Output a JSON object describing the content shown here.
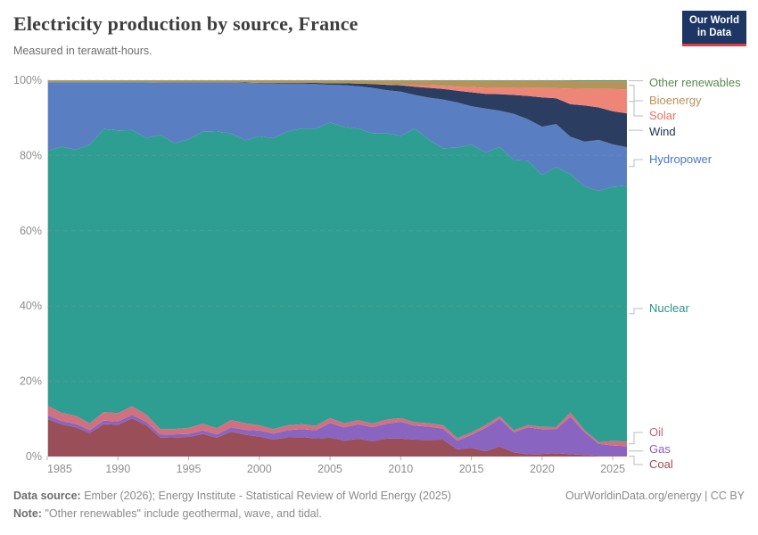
{
  "header": {
    "title": "Electricity production by source, France",
    "subtitle": "Measured in terawatt-hours.",
    "logo": {
      "line1": "Our World",
      "line2": "in Data",
      "bg_color": "#1d3663",
      "accent_color": "#dc3e42"
    }
  },
  "chart_data": {
    "type": "area",
    "stacked": true,
    "relative": true,
    "title": "Electricity production by source, France",
    "subtitle": "Measured in terawatt-hours.",
    "xlabel": "",
    "ylabel": "",
    "ylim": [
      0,
      100
    ],
    "grid": true,
    "legend_position": "right",
    "x": [
      1985,
      1986,
      1987,
      1988,
      1989,
      1990,
      1991,
      1992,
      1993,
      1994,
      1995,
      1996,
      1997,
      1998,
      1999,
      2000,
      2001,
      2002,
      2003,
      2004,
      2005,
      2006,
      2007,
      2008,
      2009,
      2010,
      2011,
      2012,
      2013,
      2014,
      2015,
      2016,
      2017,
      2018,
      2019,
      2020,
      2021,
      2022,
      2023,
      2024,
      2025,
      2026
    ],
    "x_ticks": [
      1985,
      1990,
      1995,
      2000,
      2005,
      2010,
      2015,
      2020,
      2025
    ],
    "y_ticks": [
      "0%",
      "20%",
      "40%",
      "60%",
      "80%",
      "100%"
    ],
    "unit": "% of total (shares of terawatt-hours)",
    "series": [
      {
        "name": "Coal",
        "color": "#9a4e57",
        "label_color": "#9d4b4f",
        "values": [
          10.0,
          8.5,
          7.8,
          6.2,
          8.6,
          8.4,
          10.1,
          8.3,
          5.0,
          5.1,
          5.2,
          6.0,
          5.0,
          6.6,
          5.8,
          5.3,
          4.5,
          5.1,
          5.1,
          4.8,
          5.0,
          4.2,
          4.7,
          4.0,
          4.7,
          4.7,
          4.5,
          4.4,
          4.5,
          1.9,
          2.3,
          1.4,
          2.7,
          1.1,
          0.6,
          0.7,
          0.9,
          0.6,
          0.4,
          0.2,
          0.2,
          0.2
        ]
      },
      {
        "name": "Gas",
        "color": "#8964c0",
        "label_color": "#8a5ec2",
        "values": [
          1.0,
          0.9,
          0.9,
          0.8,
          0.9,
          0.9,
          0.9,
          0.9,
          0.8,
          0.8,
          0.8,
          0.9,
          0.9,
          1.1,
          1.3,
          1.6,
          1.6,
          1.9,
          2.1,
          2.1,
          3.9,
          3.5,
          3.8,
          3.7,
          3.9,
          4.4,
          3.7,
          3.5,
          2.9,
          2.3,
          3.4,
          6.2,
          7.3,
          5.3,
          7.2,
          6.6,
          6.3,
          9.8,
          6.1,
          3.2,
          2.8,
          2.6
        ]
      },
      {
        "name": "Oil",
        "color": "#d3707f",
        "label_color": "#cb6177",
        "values": [
          2.5,
          2.2,
          2.1,
          1.8,
          2.3,
          2.2,
          2.3,
          1.9,
          1.5,
          1.4,
          1.6,
          1.8,
          1.6,
          2.0,
          1.7,
          1.4,
          1.2,
          1.3,
          1.3,
          1.2,
          1.3,
          1.1,
          1.1,
          1.0,
          1.1,
          1.0,
          0.9,
          0.9,
          0.9,
          0.7,
          0.7,
          0.7,
          0.7,
          0.6,
          0.6,
          0.6,
          0.6,
          1.1,
          0.6,
          0.5,
          1.2,
          1.3
        ]
      },
      {
        "name": "Nuclear",
        "color": "#2f9e92",
        "label_color": "#2a9285",
        "values": [
          67.5,
          70.5,
          70.5,
          73.8,
          75.0,
          74.9,
          73.2,
          73.3,
          78.0,
          75.8,
          76.5,
          77.4,
          78.7,
          76.0,
          75.2,
          76.8,
          77.3,
          78.2,
          77.9,
          78.3,
          78.4,
          78.2,
          76.9,
          76.3,
          75.2,
          74.1,
          78.0,
          74.9,
          73.4,
          77.1,
          76.4,
          72.4,
          71.6,
          71.8,
          70.6,
          67.2,
          68.9,
          62.6,
          65.0,
          67.4,
          69.0,
          69.5
        ]
      },
      {
        "name": "Hydropower",
        "color": "#597fc2",
        "label_color": "#4877c6",
        "values": [
          18.2,
          17.1,
          17.9,
          16.6,
          12.4,
          12.8,
          12.7,
          14.8,
          13.9,
          16.1,
          15.1,
          13.1,
          13.0,
          13.5,
          15.2,
          14.1,
          14.6,
          12.7,
          11.8,
          11.7,
          10.0,
          11.0,
          11.2,
          11.9,
          11.3,
          11.6,
          8.9,
          11.1,
          12.9,
          12.0,
          10.2,
          11.6,
          9.7,
          12.3,
          11.1,
          12.9,
          11.4,
          9.8,
          11.9,
          13.7,
          11.5,
          10.5
        ]
      },
      {
        "name": "Wind",
        "color": "#2b3d61",
        "label_color": "#1d3152",
        "values": [
          0,
          0,
          0,
          0,
          0,
          0,
          0,
          0,
          0,
          0,
          0,
          0,
          0,
          0,
          0.1,
          0.1,
          0.1,
          0.2,
          0.2,
          0.3,
          0.4,
          0.5,
          0.7,
          1.0,
          1.4,
          1.7,
          2.2,
          2.6,
          2.8,
          3.1,
          3.7,
          3.9,
          4.4,
          5.0,
          6.2,
          7.8,
          6.8,
          8.5,
          9.7,
          8.7,
          9.0,
          9.2
        ]
      },
      {
        "name": "Solar",
        "color": "#ee8577",
        "label_color": "#ec7061",
        "values": [
          0,
          0,
          0,
          0,
          0,
          0,
          0,
          0,
          0,
          0,
          0,
          0,
          0,
          0,
          0,
          0,
          0,
          0,
          0,
          0,
          0,
          0,
          0,
          0,
          0.1,
          0.1,
          0.4,
          0.7,
          0.8,
          1.1,
          1.4,
          1.6,
          1.7,
          1.9,
          2.1,
          2.5,
          2.7,
          4.1,
          4.4,
          5.0,
          6.0,
          6.5
        ]
      },
      {
        "name": "Bioenergy",
        "color": "#b5945b",
        "label_color": "#c0905a",
        "values": [
          0.4,
          0.4,
          0.4,
          0.4,
          0.4,
          0.4,
          0.4,
          0.4,
          0.5,
          0.5,
          0.5,
          0.5,
          0.5,
          0.5,
          0.5,
          0.6,
          0.6,
          0.6,
          0.6,
          0.6,
          0.7,
          0.7,
          0.8,
          0.9,
          1.0,
          1.1,
          1.2,
          1.2,
          1.3,
          1.5,
          1.6,
          1.8,
          1.8,
          1.8,
          1.9,
          1.9,
          1.9,
          2.0,
          2.0,
          2.0,
          2.1,
          2.2
        ]
      },
      {
        "name": "Other renewables",
        "color": "#5b8f4c",
        "label_color": "#568c4b",
        "values": [
          0.1,
          0.1,
          0.1,
          0.1,
          0.1,
          0.1,
          0.1,
          0.1,
          0.1,
          0.1,
          0.1,
          0.1,
          0.1,
          0.1,
          0.1,
          0.1,
          0.1,
          0.1,
          0.1,
          0.1,
          0.1,
          0.1,
          0.1,
          0.1,
          0.1,
          0.1,
          0.1,
          0.1,
          0.2,
          0.2,
          0.2,
          0.2,
          0.2,
          0.2,
          0.2,
          0.2,
          0.2,
          0.2,
          0.3,
          0.3,
          0.3,
          0.3
        ]
      }
    ],
    "axis_text_color": "#8e8e8e",
    "gridline_color": "#8f9a97",
    "leader_line_color": "#b9bcc0"
  },
  "footer": {
    "source_label": "Data source:",
    "source_text": "Ember (2026); Energy Institute - Statistical Review of World Energy (2025)",
    "note_label": "Note:",
    "note_text": "\"Other renewables\" include geothermal, wave, and tidal.",
    "right_text": "OurWorldinData.org/energy | CC BY"
  }
}
